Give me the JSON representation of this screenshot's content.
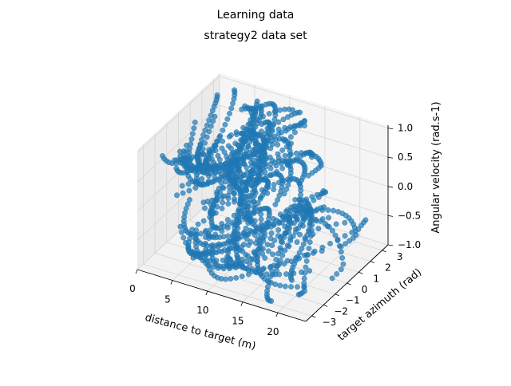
{
  "figure": {
    "suptitle": "Learning data",
    "title": "strategy2 data set"
  },
  "chart_data": {
    "type": "scatter",
    "projection": "3d",
    "title": "strategy2 data set",
    "suptitle": "Learning data",
    "xlabel": "distance to target (m)",
    "ylabel": "target azimuth (rad)",
    "zlabel": "Angular velocity (rad.s-1)",
    "xlim": [
      0,
      24
    ],
    "ylim": [
      -3.5,
      3.5
    ],
    "zlim": [
      -1.0,
      1.05
    ],
    "xticks": [
      0,
      5,
      10,
      15,
      20
    ],
    "yticks": [
      -3,
      -2,
      -1,
      0,
      1,
      2,
      3
    ],
    "zticks": [
      -1.0,
      -0.5,
      0.0,
      0.5,
      1.0
    ],
    "xtick_labels": [
      "0",
      "5",
      "10",
      "15",
      "20"
    ],
    "ytick_labels": [
      "−3",
      "−2",
      "−1",
      "0",
      "1",
      "2",
      "3"
    ],
    "ztick_labels": [
      "−1.0",
      "−0.5",
      "0.0",
      "0.5",
      "1.0"
    ],
    "grid": true,
    "marker_color": "#1f77b4",
    "point_count_estimate": 1500,
    "clusters": [
      {
        "x_range": [
          1,
          14
        ],
        "y_range": [
          -3,
          3
        ],
        "z_range": [
          0.55,
          1.0
        ],
        "note": "upper band of trajectories"
      },
      {
        "x_range": [
          2,
          16
        ],
        "y_range": [
          -3,
          3
        ],
        "z_range": [
          -0.4,
          0.4
        ],
        "note": "middle band"
      },
      {
        "x_range": [
          3,
          22
        ],
        "y_range": [
          -3,
          3
        ],
        "z_range": [
          -1.0,
          -0.5
        ],
        "note": "lower band, curved arcs at large distance"
      }
    ]
  }
}
